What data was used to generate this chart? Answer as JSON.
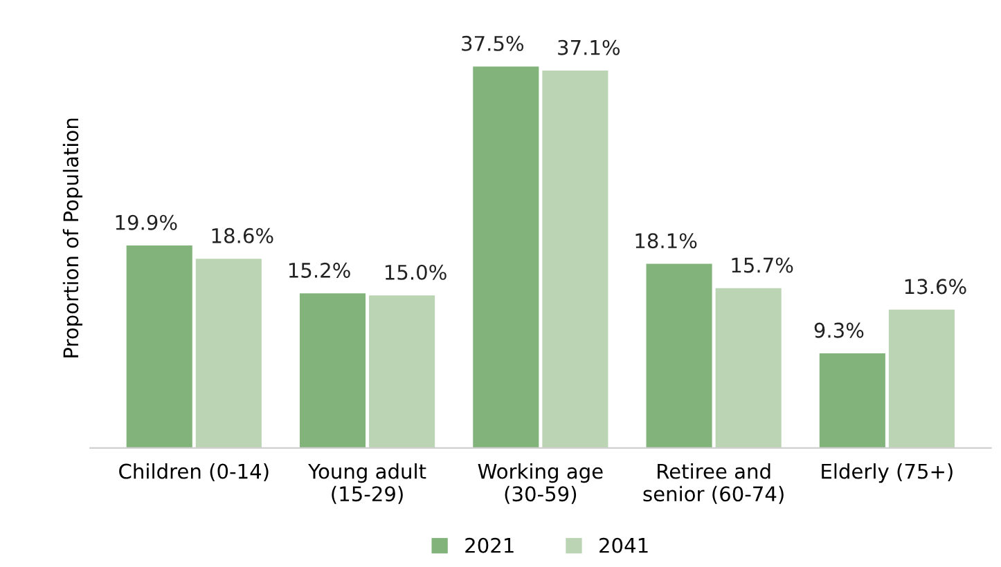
{
  "chart_data": {
    "type": "bar",
    "ylabel": "Proportion of Population",
    "categories": [
      "Children (0-14)",
      "Young adult\n(15-29)",
      "Working age\n(30-59)",
      "Retiree and\nsenior (60-74)",
      "Elderly (75+)"
    ],
    "series": [
      {
        "name": "2021",
        "color": "#82b37b",
        "values": [
          19.9,
          15.2,
          37.5,
          18.1,
          9.3
        ],
        "value_labels": [
          "19.9%",
          "15.2%",
          "37.5%",
          "18.1%",
          "9.3%"
        ]
      },
      {
        "name": "2041",
        "color": "#bad4b4",
        "values": [
          18.6,
          15.0,
          37.1,
          15.7,
          13.6
        ],
        "value_labels": [
          "18.6%",
          "15.0%",
          "37.1%",
          "15.7%",
          "13.6%"
        ]
      }
    ],
    "legend": "bottom",
    "grid": false
  }
}
